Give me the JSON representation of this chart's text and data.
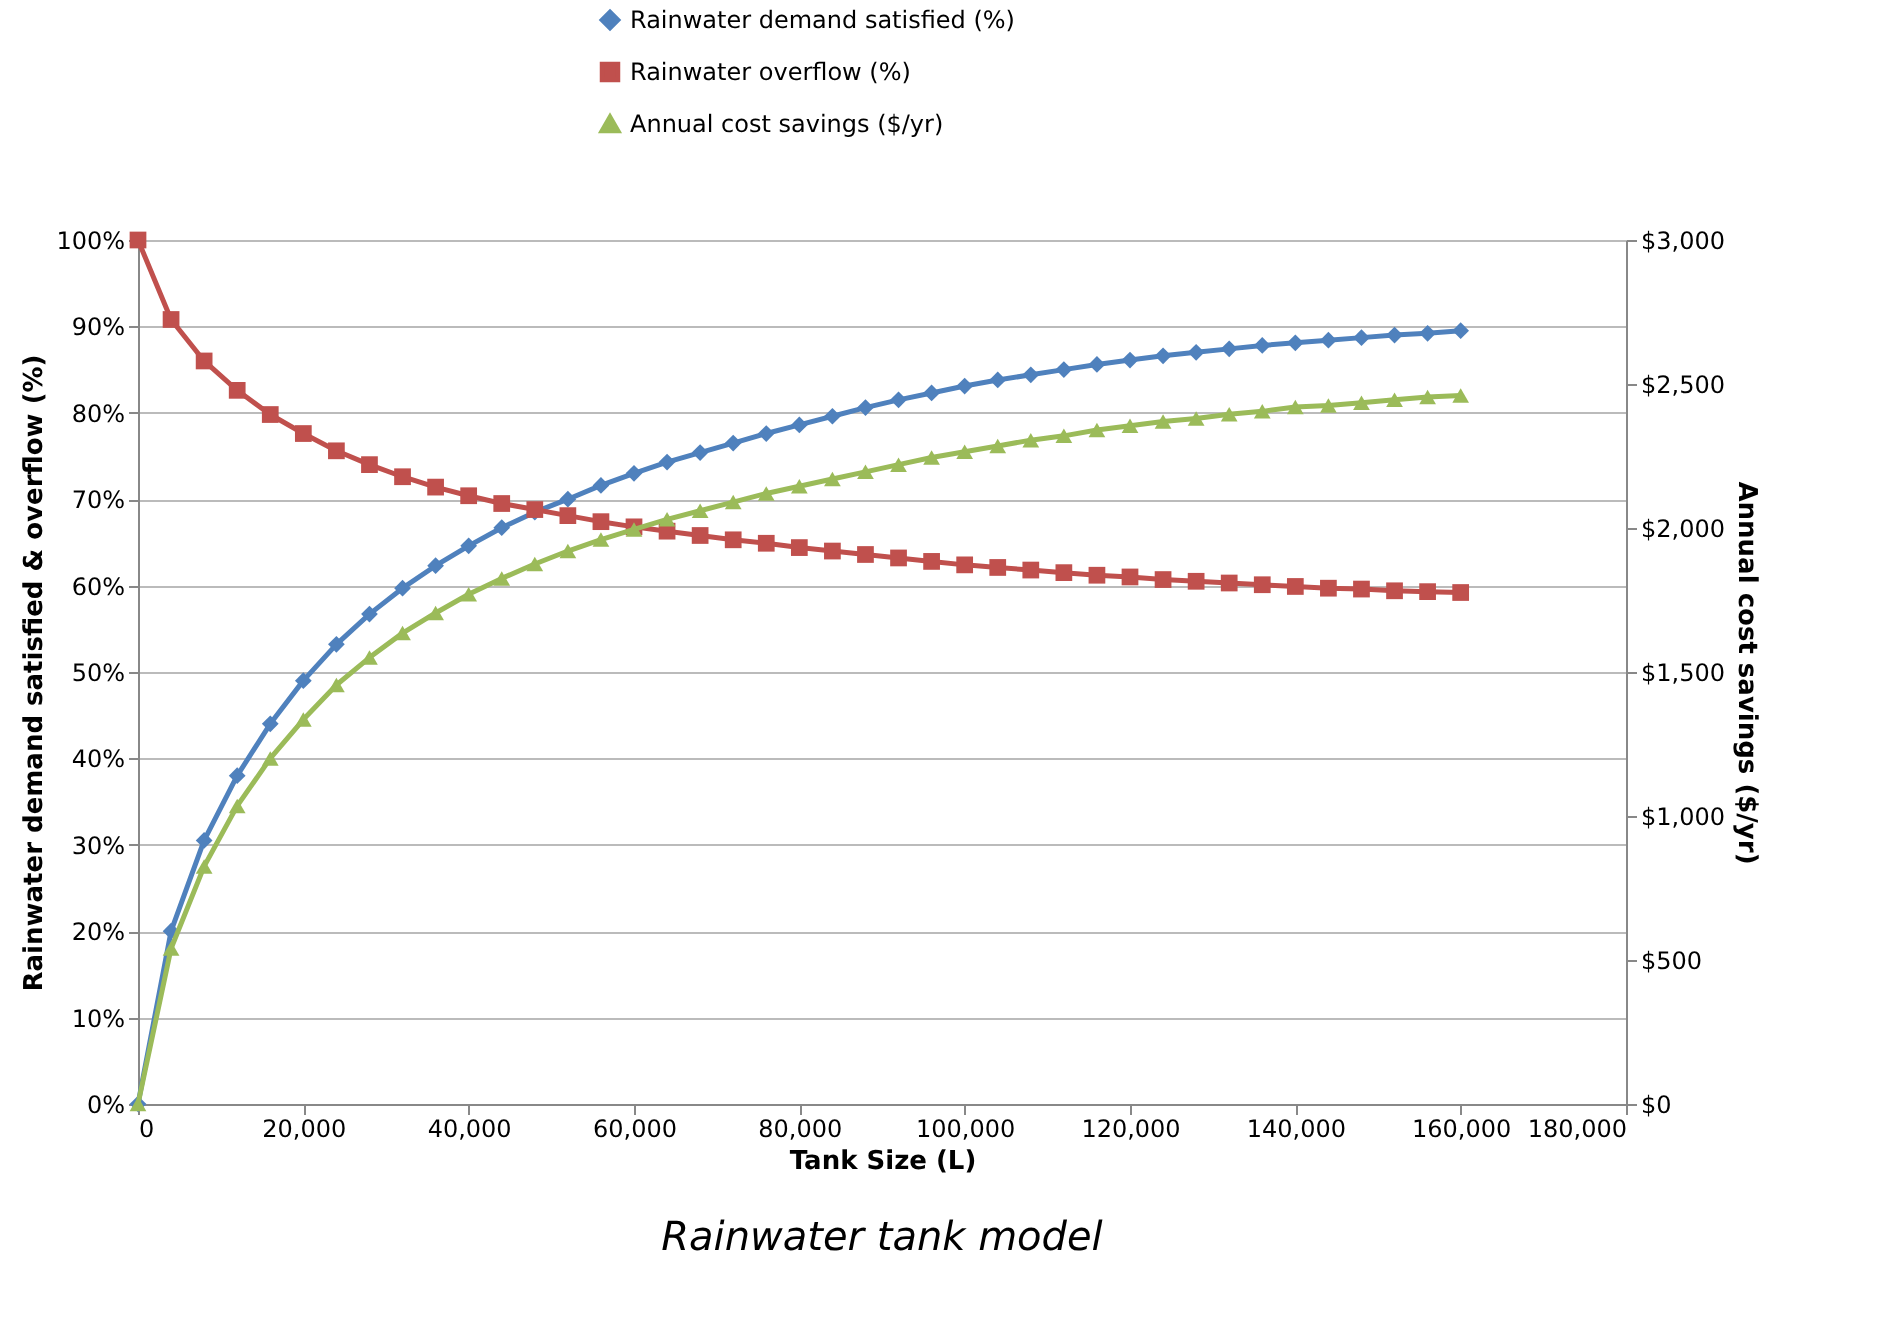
{
  "chart_data": {
    "type": "line",
    "title": "Rainwater tank model",
    "xlabel": "Tank Size (L)",
    "ylabel": "Rainwater demand satisfied & overflow (%)",
    "y2label": "Annual cost savings ($/yr)",
    "x": [
      0,
      4000,
      8000,
      12000,
      16000,
      20000,
      24000,
      28000,
      32000,
      36000,
      40000,
      44000,
      48000,
      52000,
      56000,
      60000,
      64000,
      68000,
      72000,
      76000,
      80000,
      84000,
      88000,
      92000,
      96000,
      100000,
      104000,
      108000,
      112000,
      116000,
      120000,
      124000,
      128000,
      132000,
      136000,
      140000,
      144000,
      148000,
      152000,
      156000,
      160000
    ],
    "series": [
      {
        "name": "Rainwater demand satisfied (%)",
        "color": "#4f81bd",
        "marker": "diamond",
        "values": [
          0,
          20,
          30.5,
          38,
          44,
          49,
          53.2,
          56.7,
          59.7,
          62.3,
          64.6,
          66.7,
          68.5,
          70,
          71.6,
          73,
          74.3,
          75.4,
          76.5,
          77.6,
          78.6,
          79.6,
          80.6,
          81.5,
          82.3,
          83.1,
          83.8,
          84.4,
          85,
          85.6,
          86.1,
          86.6,
          87,
          87.4,
          87.8,
          88.1,
          88.4,
          88.7,
          89,
          89.2,
          89.5
        ]
      },
      {
        "name": "Rainwater overflow (%)",
        "color": "#c0504d",
        "marker": "square",
        "values": [
          100,
          90.8,
          86,
          82.6,
          79.8,
          77.6,
          75.6,
          74,
          72.6,
          71.4,
          70.4,
          69.5,
          68.8,
          68.1,
          67.4,
          66.8,
          66.3,
          65.8,
          65.3,
          64.9,
          64.4,
          64,
          63.6,
          63.2,
          62.8,
          62.4,
          62.1,
          61.8,
          61.5,
          61.2,
          61,
          60.7,
          60.5,
          60.3,
          60.1,
          59.9,
          59.7,
          59.6,
          59.4,
          59.3,
          59.2
        ]
      },
      {
        "name": "Annual cost savings ($/yr)",
        "color": "#9bbb59",
        "marker": "triangle",
        "axis": "y2",
        "values": [
          0,
          540,
          825,
          1035,
          1200,
          1335,
          1455,
          1550,
          1635,
          1705,
          1770,
          1825,
          1875,
          1920,
          1960,
          1995,
          2030,
          2060,
          2090,
          2120,
          2145,
          2170,
          2195,
          2220,
          2245,
          2265,
          2285,
          2305,
          2320,
          2340,
          2355,
          2370,
          2380,
          2395,
          2405,
          2420,
          2425,
          2435,
          2445,
          2455,
          2460
        ]
      }
    ],
    "xlim": [
      0,
      180000
    ],
    "xticks": [
      {
        "value": 0,
        "label": "0"
      },
      {
        "value": 20000,
        "label": "20,000"
      },
      {
        "value": 40000,
        "label": "40,000"
      },
      {
        "value": 60000,
        "label": "60,000"
      },
      {
        "value": 80000,
        "label": "80,000"
      },
      {
        "value": 100000,
        "label": "100,000"
      },
      {
        "value": 120000,
        "label": "120,000"
      },
      {
        "value": 140000,
        "label": "140,000"
      },
      {
        "value": 160000,
        "label": "160,000"
      },
      {
        "value": 180000,
        "label": "180,000"
      }
    ],
    "ylim": [
      0,
      100
    ],
    "yticks": [
      {
        "value": 0,
        "label": "0%"
      },
      {
        "value": 10,
        "label": "10%"
      },
      {
        "value": 20,
        "label": "20%"
      },
      {
        "value": 30,
        "label": "30%"
      },
      {
        "value": 40,
        "label": "40%"
      },
      {
        "value": 50,
        "label": "50%"
      },
      {
        "value": 60,
        "label": "60%"
      },
      {
        "value": 70,
        "label": "70%"
      },
      {
        "value": 80,
        "label": "80%"
      },
      {
        "value": 90,
        "label": "90%"
      },
      {
        "value": 100,
        "label": "100%"
      }
    ],
    "y2lim": [
      0,
      3000
    ],
    "y2ticks": [
      {
        "value": 0,
        "label": "$0"
      },
      {
        "value": 500,
        "label": "$500"
      },
      {
        "value": 1000,
        "label": "$1,000"
      },
      {
        "value": 1500,
        "label": "$1,500"
      },
      {
        "value": 2000,
        "label": "$2,000"
      },
      {
        "value": 2500,
        "label": "$2,500"
      },
      {
        "value": 3000,
        "label": "$3,000"
      }
    ],
    "grid": "y",
    "legend": "top",
    "line_style": "solid"
  }
}
